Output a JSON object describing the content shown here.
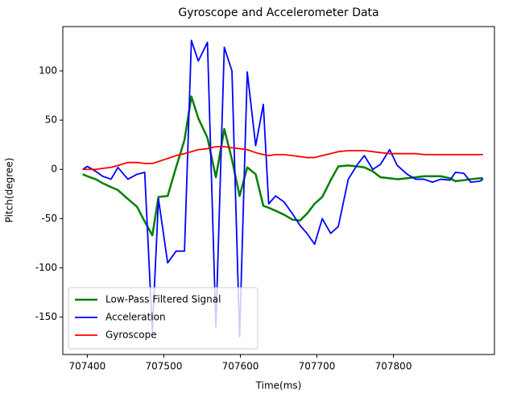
{
  "chart_data": {
    "type": "line",
    "title": "Gyroscope and Accelerometer Data",
    "x_label": "Time(ms)",
    "y_label": "Pitch(degree)",
    "x": [
      707394,
      707400,
      707411,
      707420,
      707431,
      707440,
      707453,
      707465,
      707475,
      707485,
      707493,
      707505,
      707516,
      707527,
      707536,
      707545,
      707557,
      707568,
      707579,
      707589,
      707599,
      707609,
      707620,
      707630,
      707637,
      707646,
      707657,
      707668,
      707678,
      707687,
      707697,
      707707,
      707718,
      707728,
      707741,
      707753,
      707762,
      707773,
      707783,
      707795,
      707805,
      707818,
      707829,
      707840,
      707851,
      707862,
      707874,
      707881,
      707892,
      707901,
      707913,
      707917
    ],
    "series": [
      {
        "name": "Low-Pass Filtered Signal",
        "color": "#008000",
        "width": 2.5,
        "values": [
          -5,
          -7,
          -10,
          -14,
          -18,
          -21,
          -30,
          -38,
          -53,
          -67,
          -28,
          -27,
          2,
          30,
          74,
          52,
          32,
          -8,
          41,
          10,
          -27,
          2,
          -5,
          -37,
          -39,
          -42,
          -46,
          -51,
          -52,
          -45,
          -35,
          -28,
          -11,
          3,
          4,
          3,
          2,
          -2,
          -8,
          -9,
          -10,
          -9,
          -8,
          -7,
          -7,
          -7,
          -9,
          -12,
          -11,
          -10,
          -9,
          -9
        ]
      },
      {
        "name": "Acceleration",
        "color": "#0000ff",
        "width": 1.8,
        "values": [
          0,
          3,
          -2,
          -7,
          -10,
          2,
          -10,
          -5,
          -3,
          -165,
          -30,
          -95,
          -83,
          -83,
          131,
          110,
          129,
          -160,
          124,
          100,
          -170,
          99,
          24,
          66,
          -35,
          -27,
          -33,
          -45,
          -57,
          -65,
          -76,
          -50,
          -65,
          -58,
          -10,
          5,
          14,
          0,
          5,
          20,
          4,
          -5,
          -10,
          -10,
          -13,
          -10,
          -11,
          -3,
          -4,
          -13,
          -12,
          -10
        ]
      },
      {
        "name": "Gyroscope",
        "color": "#ff0000",
        "width": 1.8,
        "values": [
          0,
          0,
          0,
          1,
          2,
          4,
          7,
          7,
          6,
          6,
          8,
          11,
          14,
          16,
          18,
          20,
          21,
          23,
          23,
          22,
          21,
          20,
          17,
          15,
          14,
          15,
          15,
          14,
          13,
          12,
          12,
          14,
          16,
          18,
          19,
          19,
          19,
          18,
          17,
          16,
          16,
          16,
          16,
          15,
          15,
          15,
          15,
          15,
          15,
          15,
          15,
          15
        ]
      }
    ],
    "xlim": [
      707368,
      707932
    ],
    "ylim": [
      -188,
      145
    ],
    "xticks": [
      707400,
      707500,
      707600,
      707700,
      707800
    ],
    "yticks": [
      -150,
      -100,
      -50,
      0,
      50,
      100
    ],
    "legend": "lower left"
  }
}
